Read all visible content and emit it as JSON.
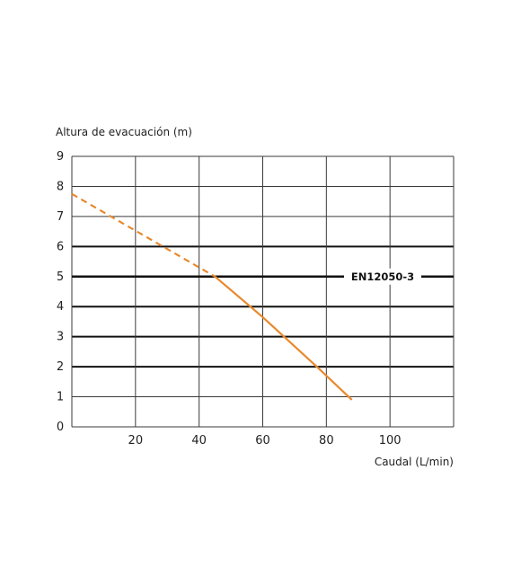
{
  "chart_data": {
    "type": "line",
    "title": "",
    "ylabel": "Altura de evacuación (m)",
    "xlabel": "Caudal (L/min)",
    "xlim": [
      0,
      120
    ],
    "ylim": [
      0,
      9
    ],
    "x_ticks": [
      20,
      40,
      60,
      80,
      100
    ],
    "x_vertical_gridlines": [
      20,
      40,
      60,
      80,
      100,
      120
    ],
    "y_ticks": [
      0,
      1,
      2,
      3,
      4,
      5,
      6,
      7,
      8,
      9
    ],
    "grid": true,
    "emphasized_y_gridlines": [
      2,
      3,
      4,
      5,
      6
    ],
    "reference_line": {
      "y": 5,
      "label": "EN12050-3"
    },
    "series": [
      {
        "color": "#e8892c",
        "points": [
          {
            "x": 0,
            "y": 7.75
          },
          {
            "x": 45,
            "y": 5.0
          },
          {
            "x": 60,
            "y": 3.65
          },
          {
            "x": 77,
            "y": 2.0
          },
          {
            "x": 88,
            "y": 0.9
          }
        ],
        "dashed_until_x": 45
      }
    ]
  }
}
